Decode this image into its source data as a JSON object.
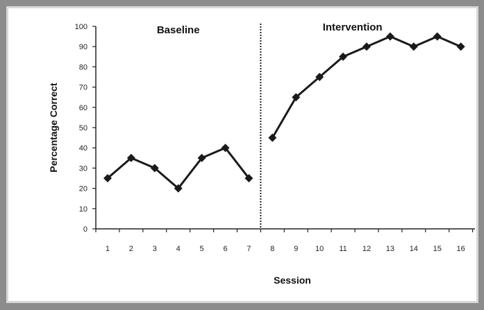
{
  "chart_data": {
    "type": "line",
    "title": "",
    "xlabel": "Session",
    "ylabel": "Percentage Correct",
    "ylim": [
      0,
      100
    ],
    "yticks": [
      "0",
      "10",
      "20",
      "30",
      "40",
      "50",
      "60",
      "70",
      "80",
      "90",
      "100"
    ],
    "phases": [
      {
        "label": "Baseline",
        "x": [
          1,
          2,
          3,
          4,
          5,
          6,
          7
        ],
        "y": [
          25,
          35,
          30,
          20,
          35,
          40,
          25
        ]
      },
      {
        "label": "Intervention",
        "x": [
          8,
          9,
          10,
          11,
          12,
          13,
          14,
          15,
          16
        ],
        "y": [
          45,
          65,
          75,
          85,
          90,
          95,
          90,
          95,
          90
        ]
      }
    ],
    "xtick_labels": [
      "1",
      "2",
      "3",
      "4",
      "5",
      "6",
      "7",
      "8",
      "9",
      "10",
      "11",
      "12",
      "13",
      "14",
      "15",
      "16"
    ],
    "phase_change_after_session": 7,
    "grid": false,
    "line_color": "#1a1a1a",
    "marker": "diamond"
  }
}
